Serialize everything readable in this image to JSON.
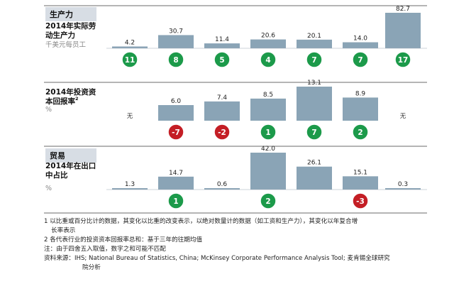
{
  "chart_data": [
    {
      "type": "bar",
      "section_tag": "生产力",
      "title_lines": [
        "2014年实际劳",
        "动生产力"
      ],
      "unit": "千美元每员工",
      "values": [
        4.2,
        30.7,
        11.4,
        20.6,
        20.1,
        14.0,
        82.7
      ],
      "value_labels": [
        "4.2",
        "30.7",
        "11.4",
        "20.6",
        "20.1",
        "14.0",
        "82.7"
      ],
      "changes": [
        "11",
        "8",
        "5",
        "4",
        "7",
        "7",
        "17"
      ],
      "change_colors": [
        "green",
        "green",
        "green",
        "green",
        "green",
        "green",
        "green"
      ]
    },
    {
      "type": "bar",
      "title_lines": [
        "2014年投资资",
        "本回报率"
      ],
      "title_sup": "2",
      "unit": "%",
      "values": [
        null,
        6.0,
        7.4,
        8.5,
        13.1,
        8.9,
        null
      ],
      "value_labels": [
        "无",
        "6.0",
        "7.4",
        "8.5",
        "13.1",
        "8.9",
        "无"
      ],
      "changes": [
        null,
        "-7",
        "-2",
        "1",
        "7",
        "2",
        null
      ],
      "change_colors": [
        null,
        "red",
        "red",
        "green",
        "green",
        "green",
        null
      ]
    },
    {
      "type": "bar",
      "section_tag": "贸易",
      "title_lines": [
        "2014年在出口",
        "中占比"
      ],
      "unit": "%",
      "values": [
        1.3,
        14.7,
        0.6,
        42.0,
        26.1,
        15.1,
        0.3
      ],
      "value_labels": [
        "1.3",
        "14.7",
        "0.6",
        "42.0",
        "26.1",
        "15.1",
        "0.3"
      ],
      "changes": [
        null,
        "1",
        null,
        "2",
        null,
        "-3",
        null
      ],
      "change_colors": [
        null,
        "green",
        null,
        "green",
        null,
        "red",
        null
      ]
    }
  ],
  "colors": {
    "bar": "#8aa4b6",
    "green": "#1c9a4a",
    "red": "#c41e25",
    "tag_bg": "#d7dde4",
    "rule": "#6b6b6b"
  },
  "notes": {
    "n1a": "1 以比重或百分比计的数据，其变化以比重的改变表示，以绝对数量计的数据（如工资和生产力），其变化以年复合增",
    "n1b": "长率表示",
    "n2": "2 各代表行业的投资资本回报率总和：基于三年的往期均值",
    "n3": "注：由于四舍五入取值，数字之和可能不匹配",
    "src1": "资料来源：IHS; National Bureau of Statistics, China; McKinsey Corporate Performance Analysis Tool; 麦肯锡全球研究",
    "src2": "院分析"
  }
}
